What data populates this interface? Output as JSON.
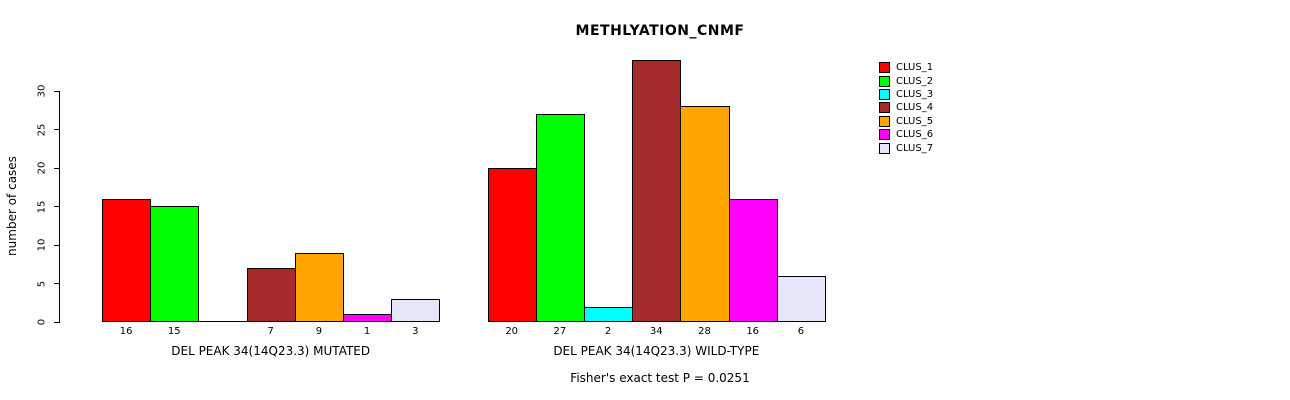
{
  "title": "METHLYATION_CNMF",
  "y_axis": {
    "label": "number of cases",
    "ticks": [
      0,
      5,
      10,
      15,
      20,
      25,
      30
    ]
  },
  "footer": "Fisher's exact test P = 0.0251",
  "legend": {
    "items": [
      {
        "label": "CLUS_1",
        "color": "#FF0000"
      },
      {
        "label": "CLUS_2",
        "color": "#00FF00"
      },
      {
        "label": "CLUS_3",
        "color": "#00FFFF"
      },
      {
        "label": "CLUS_4",
        "color": "#A52A2A"
      },
      {
        "label": "CLUS_5",
        "color": "#FFA500"
      },
      {
        "label": "CLUS_6",
        "color": "#FF00FF"
      },
      {
        "label": "CLUS_7",
        "color": "#E6E6FA"
      }
    ]
  },
  "chart_data": {
    "type": "bar",
    "title": "METHLYATION_CNMF",
    "ylabel": "number of cases",
    "xlabel": "",
    "ylim": [
      0,
      34
    ],
    "yticks": [
      0,
      5,
      10,
      15,
      20,
      25,
      30
    ],
    "grid": false,
    "legend_position": "right",
    "series_names": [
      "CLUS_1",
      "CLUS_2",
      "CLUS_3",
      "CLUS_4",
      "CLUS_5",
      "CLUS_6",
      "CLUS_7"
    ],
    "series_colors": [
      "#FF0000",
      "#00FF00",
      "#00FFFF",
      "#A52A2A",
      "#FFA500",
      "#FF00FF",
      "#E6E6FA"
    ],
    "groups": [
      {
        "label": "DEL PEAK 34(14Q23.3) MUTATED",
        "values": [
          16,
          15,
          0,
          7,
          9,
          1,
          3
        ]
      },
      {
        "label": "DEL PEAK 34(14Q23.3) WILD-TYPE",
        "values": [
          20,
          27,
          2,
          34,
          28,
          16,
          6
        ]
      }
    ],
    "bar_value_labels_shown": true,
    "zero_value_labels_hidden": true,
    "annotation": "Fisher's exact test P = 0.0251"
  }
}
